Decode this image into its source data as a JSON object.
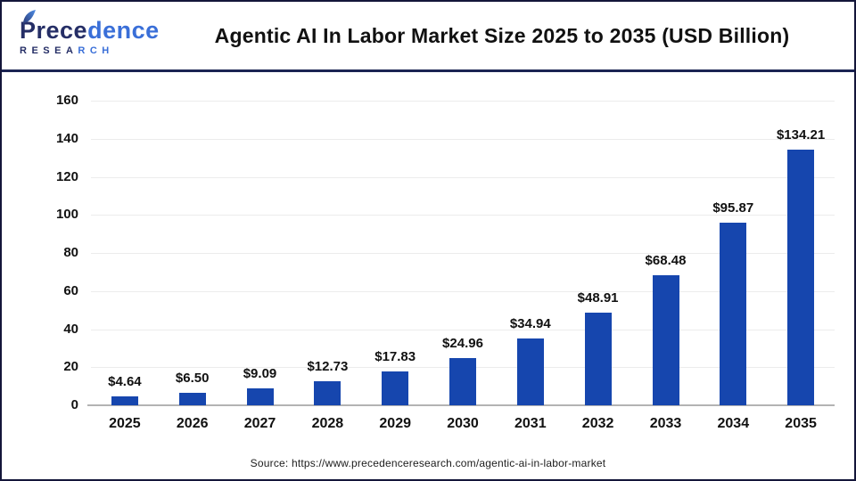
{
  "header": {
    "logo": {
      "part1": "Prece",
      "part2": "dence",
      "sub1": "RESEA",
      "sub2": "RCH",
      "navy": "#252e66",
      "blue": "#3a6fd8"
    },
    "title": "Agentic AI In Labor Market Size 2025 to 2035 (USD Billion)"
  },
  "chart_data": {
    "type": "bar",
    "title": "Agentic AI In Labor Market Size 2025 to 2035 (USD Billion)",
    "categories": [
      "2025",
      "2026",
      "2027",
      "2028",
      "2029",
      "2030",
      "2031",
      "2032",
      "2033",
      "2034",
      "2035"
    ],
    "values": [
      4.64,
      6.5,
      9.09,
      12.73,
      17.83,
      24.96,
      34.94,
      48.91,
      68.48,
      95.87,
      134.21
    ],
    "data_labels": [
      "$4.64",
      "$6.50",
      "$9.09",
      "$12.73",
      "$17.83",
      "$24.96",
      "$34.94",
      "$48.91",
      "$68.48",
      "$95.87",
      "$134.21"
    ],
    "value_prefix": "$",
    "xlabel": "",
    "ylabel": "",
    "ylim": [
      0,
      160
    ],
    "ytick_step": 20,
    "yticks": [
      0,
      20,
      40,
      60,
      80,
      100,
      120,
      140,
      160
    ],
    "grid": true,
    "legend": false,
    "bar_color": "#1646ae",
    "gridline_color": "#ececec",
    "baseline_color": "#b3b3b3"
  },
  "footer": {
    "source": "Source: https://www.precedenceresearch.com/agentic-ai-in-labor-market"
  }
}
